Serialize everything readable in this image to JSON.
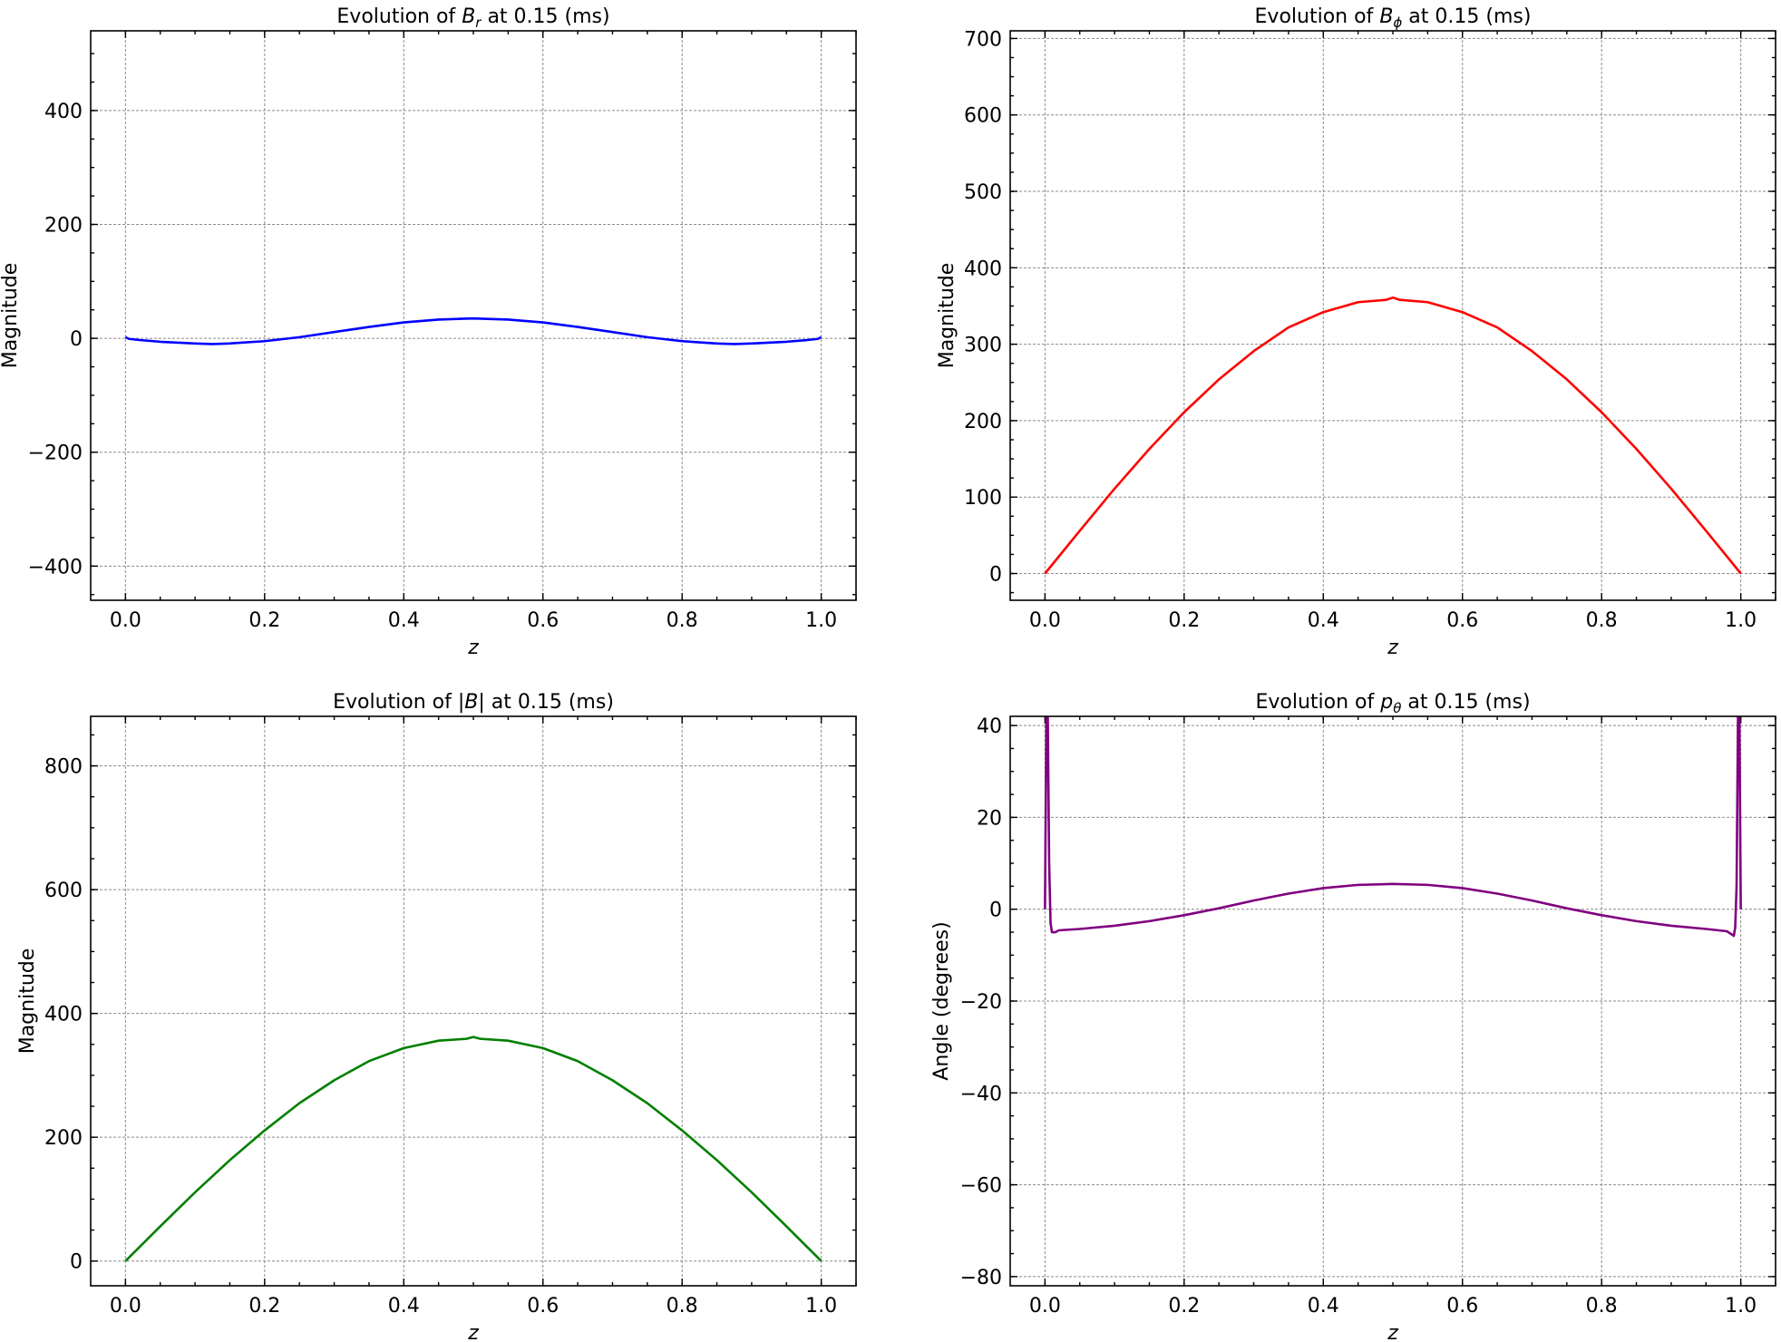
{
  "chart_data": [
    {
      "type": "line",
      "title": "Evolution of B_r at 0.15 (ms)",
      "title_parts": {
        "pre": "Evolution of ",
        "sym": "B",
        "sub": "r",
        "post": " at 0.15 (ms)"
      },
      "xlabel": "z",
      "ylabel": "Magnitude",
      "xlim": [
        -0.05,
        1.05
      ],
      "ylim": [
        -460,
        540
      ],
      "xticks": [
        "0.0",
        "0.2",
        "0.4",
        "0.6",
        "0.8",
        "1.0"
      ],
      "xtick_values": [
        0,
        0.2,
        0.4,
        0.6,
        0.8,
        1.0
      ],
      "yticks": [
        "−400",
        "−200",
        "0",
        "200",
        "400"
      ],
      "ytick_values": [
        -400,
        -200,
        0,
        200,
        400
      ],
      "grid": true,
      "color": "#0000ff",
      "series": [
        {
          "x": [
            0,
            0.005,
            0.02,
            0.05,
            0.1,
            0.125,
            0.15,
            0.2,
            0.25,
            0.3,
            0.35,
            0.4,
            0.45,
            0.5,
            0.55,
            0.6,
            0.65,
            0.7,
            0.75,
            0.8,
            0.85,
            0.875,
            0.9,
            0.95,
            0.98,
            0.995,
            1.0
          ],
          "y": [
            2,
            -1,
            -3,
            -6,
            -9,
            -10,
            -9,
            -5,
            2,
            11,
            20,
            28,
            33,
            35,
            33,
            28,
            20,
            11,
            2,
            -5,
            -9,
            -10,
            -9,
            -6,
            -3,
            -1,
            2
          ]
        }
      ]
    },
    {
      "type": "line",
      "title": "Evolution of B_ϕ at 0.15 (ms)",
      "title_parts": {
        "pre": "Evolution of ",
        "sym": "B",
        "sub": "ϕ",
        "post": " at 0.15 (ms)"
      },
      "xlabel": "z",
      "ylabel": "Magnitude",
      "xlim": [
        -0.05,
        1.05
      ],
      "ylim": [
        -35,
        710
      ],
      "xticks": [
        "0.0",
        "0.2",
        "0.4",
        "0.6",
        "0.8",
        "1.0"
      ],
      "xtick_values": [
        0,
        0.2,
        0.4,
        0.6,
        0.8,
        1.0
      ],
      "yticks": [
        "0",
        "100",
        "200",
        "300",
        "400",
        "500",
        "600",
        "700"
      ],
      "ytick_values": [
        0,
        100,
        200,
        300,
        400,
        500,
        600,
        700
      ],
      "grid": true,
      "color": "#ff0000",
      "series": [
        {
          "x": [
            0,
            0.05,
            0.1,
            0.15,
            0.2,
            0.25,
            0.3,
            0.35,
            0.4,
            0.45,
            0.49,
            0.5,
            0.51,
            0.55,
            0.6,
            0.65,
            0.7,
            0.75,
            0.8,
            0.85,
            0.9,
            0.95,
            1.0
          ],
          "y": [
            0,
            56,
            111,
            163,
            211,
            254,
            291,
            322,
            342,
            355,
            358,
            361,
            358,
            355,
            342,
            322,
            291,
            254,
            211,
            163,
            111,
            56,
            0
          ]
        }
      ]
    },
    {
      "type": "line",
      "title": "Evolution of |B| at 0.15 (ms)",
      "title_parts": {
        "pre": "Evolution of |",
        "sym": "B",
        "sub": "",
        "post": "| at 0.15 (ms)"
      },
      "xlabel": "z",
      "ylabel": "Magnitude",
      "xlim": [
        -0.05,
        1.05
      ],
      "ylim": [
        -40,
        880
      ],
      "xticks": [
        "0.0",
        "0.2",
        "0.4",
        "0.6",
        "0.8",
        "1.0"
      ],
      "xtick_values": [
        0,
        0.2,
        0.4,
        0.6,
        0.8,
        1.0
      ],
      "yticks": [
        "0",
        "200",
        "400",
        "600",
        "800"
      ],
      "ytick_values": [
        0,
        200,
        400,
        600,
        800
      ],
      "grid": true,
      "color": "#008000",
      "series": [
        {
          "x": [
            0,
            0.05,
            0.1,
            0.15,
            0.2,
            0.25,
            0.3,
            0.35,
            0.4,
            0.45,
            0.49,
            0.5,
            0.51,
            0.55,
            0.6,
            0.65,
            0.7,
            0.75,
            0.8,
            0.85,
            0.9,
            0.95,
            1.0
          ],
          "y": [
            0,
            56,
            111,
            163,
            211,
            255,
            292,
            323,
            344,
            356,
            359,
            362,
            359,
            356,
            344,
            323,
            292,
            255,
            211,
            163,
            111,
            56,
            0
          ]
        }
      ]
    },
    {
      "type": "line",
      "title": "Evolution of p_θ at 0.15 (ms)",
      "title_parts": {
        "pre": "Evolution of ",
        "sym": "p",
        "sub": "θ",
        "post": " at 0.15 (ms)"
      },
      "xlabel": "z",
      "ylabel": "Angle (degrees)",
      "xlim": [
        -0.05,
        1.05
      ],
      "ylim": [
        -82,
        42
      ],
      "xticks": [
        "0.0",
        "0.2",
        "0.4",
        "0.6",
        "0.8",
        "1.0"
      ],
      "xtick_values": [
        0,
        0.2,
        0.4,
        0.6,
        0.8,
        1.0
      ],
      "yticks": [
        "−80",
        "−60",
        "−40",
        "−20",
        "0",
        "20",
        "40"
      ],
      "ytick_values": [
        -80,
        -60,
        -40,
        -20,
        0,
        20,
        40
      ],
      "grid": true,
      "color": "#800080",
      "series": [
        {
          "x": [
            0,
            0.002,
            0.004,
            0.006,
            0.008,
            0.01,
            0.015,
            0.02,
            0.05,
            0.1,
            0.15,
            0.2,
            0.25,
            0.3,
            0.35,
            0.4,
            0.45,
            0.5,
            0.55,
            0.6,
            0.65,
            0.7,
            0.75,
            0.8,
            0.85,
            0.9,
            0.95,
            0.98,
            0.99,
            0.992,
            0.994,
            0.996,
            0.998,
            1.0
          ],
          "y": [
            0,
            42,
            42,
            10,
            -3,
            -5,
            -5,
            -4.6,
            -4.3,
            -3.6,
            -2.6,
            -1.3,
            0.2,
            1.9,
            3.4,
            4.6,
            5.3,
            5.5,
            5.3,
            4.6,
            3.4,
            1.9,
            0.2,
            -1.3,
            -2.6,
            -3.6,
            -4.3,
            -4.8,
            -5.8,
            -4,
            5,
            42,
            42,
            0
          ]
        }
      ]
    }
  ]
}
